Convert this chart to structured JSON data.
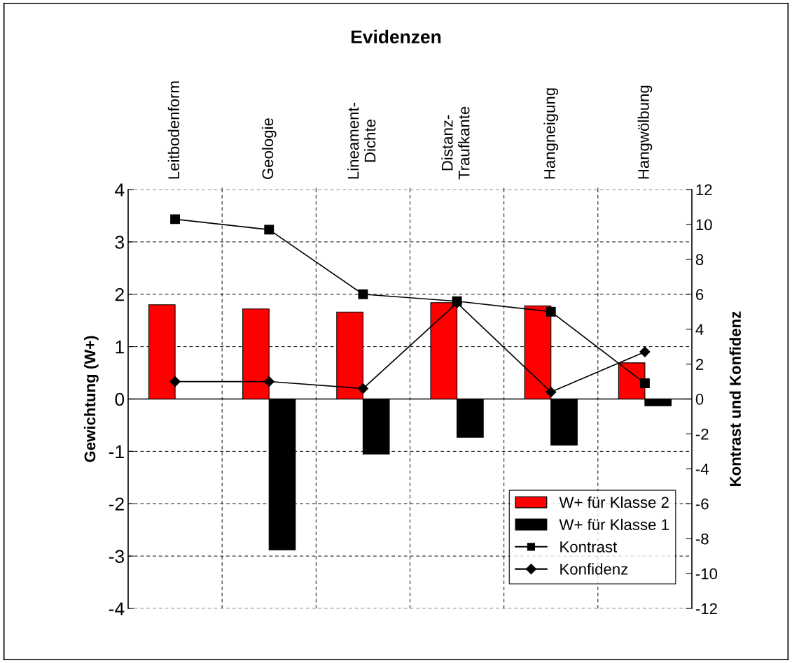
{
  "chart_data": {
    "type": "bar",
    "title": "Evidenzen",
    "categories": [
      "Leitbodenform",
      "Geologie",
      "Lineament-\nDichte",
      "Distanz-\nTraufkante",
      "Hangneigung",
      "Hangwölbung"
    ],
    "series": [
      {
        "name": "W+ für Klasse 2",
        "color": "#ff0000",
        "values": [
          1.8,
          1.72,
          1.66,
          1.84,
          1.78,
          0.69
        ]
      },
      {
        "name": "W+ für Klasse 1",
        "color": "#000000",
        "values": [
          0,
          -2.88,
          -1.05,
          -0.73,
          -0.88,
          -0.13
        ]
      },
      {
        "name": "Kontrast",
        "type": "line",
        "axis": "y2",
        "marker": "square",
        "color": "#000000",
        "values": [
          10.3,
          9.7,
          6.0,
          5.6,
          5.0,
          0.9
        ]
      },
      {
        "name": "Konfidenz",
        "type": "line",
        "axis": "y2",
        "marker": "diamond",
        "color": "#000000",
        "values": [
          1.0,
          1.0,
          0.6,
          5.5,
          0.4,
          2.7
        ]
      }
    ],
    "ylabel": "Gewichtung (W+)",
    "y2label": "Kontrast und Konfidenz",
    "ylim": [
      -4,
      4
    ],
    "yticks": [
      -4,
      -3,
      -2,
      -1,
      0,
      1,
      2,
      3,
      4
    ],
    "y2lim": [
      -12,
      12
    ],
    "y2ticks": [
      -12,
      -10,
      -8,
      -6,
      -4,
      -2,
      0,
      2,
      4,
      6,
      8,
      10,
      12
    ],
    "grid": true,
    "legend": "bottom right"
  }
}
